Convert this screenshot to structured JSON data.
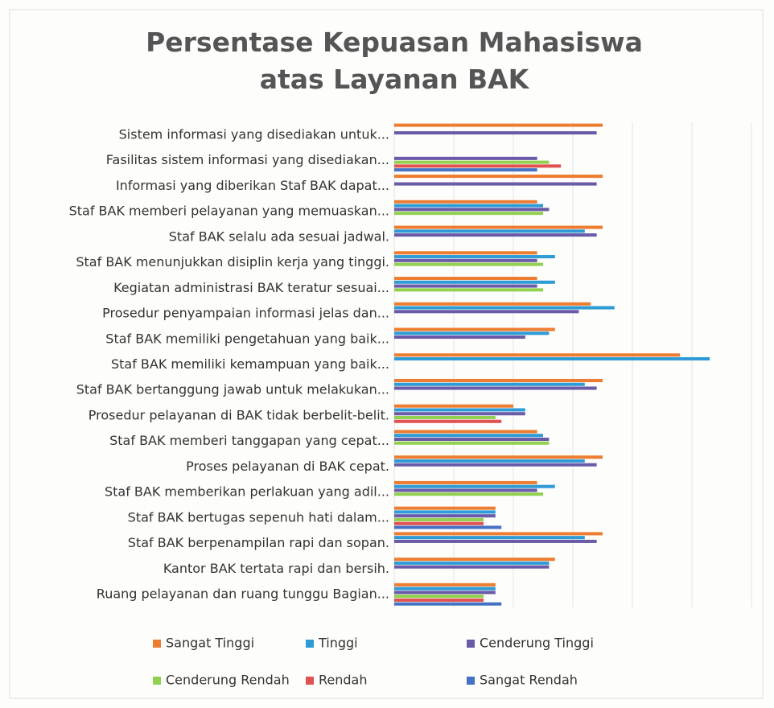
{
  "chart_data": {
    "type": "barh",
    "title": "Persentase Kepuasan Mahasiswa atas Layanan BAK",
    "categories": [
      "Sistem informasi yang disediakan untuk...",
      "Fasilitas sistem informasi yang disediakan...",
      "Informasi yang diberikan Staf BAK dapat...",
      "Staf BAK memberi pelayanan yang memuaskan...",
      "Staf BAK selalu ada sesuai jadwal.",
      "Staf BAK menunjukkan disiplin kerja yang tinggi.",
      "Kegiatan administrasi BAK teratur sesuai...",
      "Prosedur penyampaian informasi jelas dan...",
      "Staf BAK memiliki pengetahuan yang baik...",
      "Staf BAK memiliki kemampuan yang baik...",
      "Staf BAK bertanggung jawab untuk melakukan...",
      "Prosedur pelayanan di BAK tidak berbelit-belit.",
      "Staf BAK memberi tanggapan yang cepat...",
      "Proses pelayanan di BAK cepat.",
      "Staf BAK memberikan perlakuan yang adil...",
      "Staf BAK bertugas sepenuh hati dalam...",
      "Staf BAK berpenampilan rapi dan sopan.",
      "Kantor BAK tertata rapi dan bersih.",
      "Ruang pelayanan dan ruang tunggu Bagian..."
    ],
    "series": [
      {
        "name": "Sangat Tinggi",
        "color": "#ed7d31",
        "values": [
          35,
          0,
          35,
          24,
          35,
          24,
          24,
          33,
          27,
          48,
          35,
          20,
          24,
          35,
          24,
          17,
          35,
          27,
          17
        ]
      },
      {
        "name": "Tinggi",
        "color": "#2e9bd6",
        "values": [
          0,
          0,
          0,
          25,
          32,
          27,
          27,
          37,
          26,
          53,
          32,
          22,
          25,
          32,
          27,
          17,
          32,
          26,
          17
        ]
      },
      {
        "name": "Cenderung Tinggi",
        "color": "#6a5aa8",
        "values": [
          34,
          24,
          34,
          26,
          34,
          24,
          24,
          31,
          22,
          0,
          34,
          22,
          26,
          34,
          24,
          17,
          34,
          26,
          17
        ]
      },
      {
        "name": "Cenderung Rendah",
        "color": "#92d050",
        "values": [
          0,
          26,
          0,
          25,
          0,
          25,
          25,
          0,
          0,
          0,
          0,
          17,
          26,
          0,
          25,
          15,
          0,
          0,
          15
        ]
      },
      {
        "name": "Rendah",
        "color": "#e05252",
        "values": [
          0,
          28,
          0,
          0,
          0,
          0,
          0,
          0,
          0,
          0,
          0,
          18,
          0,
          0,
          0,
          15,
          0,
          0,
          15
        ]
      },
      {
        "name": "Sangat Rendah",
        "color": "#4472c4",
        "values": [
          0,
          24,
          0,
          0,
          0,
          0,
          0,
          0,
          0,
          0,
          0,
          0,
          0,
          0,
          0,
          18,
          0,
          0,
          18
        ]
      }
    ],
    "xlim": [
      0,
      60
    ],
    "xticks": [
      0,
      10,
      20,
      30,
      40,
      50,
      60
    ],
    "grid": true
  }
}
